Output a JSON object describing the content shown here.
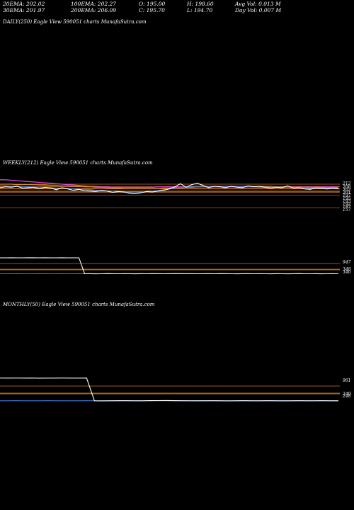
{
  "stats": {
    "ema20": "20EMA: 202.02",
    "ema30": "30EMA: 201.97",
    "ema100": "100EMA: 202.27",
    "ema200": "200EMA: 206.09",
    "open": "O: 195.00",
    "close": "C: 195.70",
    "high": "H: 198.60",
    "low": "L: 194.70",
    "avg_vol": "Avg Vol: 0.013 M",
    "day_vol": "Day Vol: 0.007 M"
  },
  "panels": {
    "daily_label": "DAILY(250) Eagle   View  590051 charts MunafaSutra.com",
    "weekly_label": "WEEKLY(212) Eagle   View  590051 charts MunafaSutra.com",
    "monthly_label": "MONTHLY(50) Eagle   View  590051 charts MunafaSutra.com"
  },
  "colors": {
    "background": "#000000",
    "text": "#ffffff",
    "price": "#ffffff",
    "ema_blue": "#3f7ce0",
    "ema_orange": "#d98a1a",
    "ema_magenta": "#d846d8",
    "level_line": "#c8761c"
  },
  "chart_data": [
    {
      "type": "line",
      "panel": "weekly",
      "y_tick_labels": [
        "212",
        "206",
        "202",
        "201",
        "197",
        "195",
        "193",
        "192",
        "187",
        "157"
      ],
      "level_lines": [
        212,
        206,
        202,
        201,
        197,
        195,
        193,
        187,
        157
      ],
      "series": [
        {
          "role": "price",
          "values": [
            204,
            206,
            205,
            207,
            203,
            204,
            205,
            201,
            205,
            203,
            199,
            204,
            201,
            198,
            200,
            197,
            196,
            195,
            198,
            196,
            193,
            195,
            194,
            191,
            190,
            192,
            195,
            194,
            196,
            198,
            201,
            206,
            213,
            205,
            211,
            214,
            209,
            204,
            207,
            206,
            204,
            207,
            205,
            204,
            208,
            206,
            207,
            205,
            203,
            205,
            204,
            208,
            203,
            204,
            201,
            200,
            203,
            202,
            201,
            203,
            201
          ]
        },
        {
          "role": "ema-short",
          "values": [
            208,
            208,
            207,
            207,
            206,
            206,
            205,
            205,
            204,
            204,
            203,
            203,
            202,
            201,
            200,
            200,
            199,
            198,
            197,
            196,
            196,
            195,
            194,
            194,
            194,
            194,
            195,
            196,
            197,
            199,
            201,
            203,
            205,
            206,
            207,
            207,
            207,
            206,
            206,
            206,
            206,
            206,
            206,
            206,
            206,
            206,
            205,
            205,
            205,
            205,
            205,
            205,
            204,
            204,
            204,
            203,
            203,
            203,
            202,
            202,
            202
          ]
        },
        {
          "role": "ema-mid",
          "values": [
            212,
            212,
            212,
            211,
            211,
            211,
            211,
            210,
            210,
            209,
            209,
            208,
            208,
            207,
            207,
            206,
            206,
            205,
            205,
            204,
            203,
            203,
            202,
            202,
            202,
            202,
            202,
            202,
            202,
            203,
            203,
            204,
            204,
            205,
            205,
            206,
            206,
            206,
            206,
            206,
            206,
            206,
            206,
            206,
            206,
            206,
            206,
            206,
            206,
            206,
            206,
            206,
            205,
            205,
            205,
            205,
            205,
            205,
            204,
            204,
            204
          ]
        },
        {
          "role": "ema-long",
          "values": [
            222,
            222,
            221,
            220,
            219,
            218,
            217,
            216,
            215,
            214,
            213,
            212,
            211,
            210,
            209,
            208,
            207,
            207,
            206,
            206,
            205,
            205,
            205,
            205,
            205,
            205,
            205,
            205,
            206,
            206,
            206,
            206,
            206,
            206,
            206,
            206,
            207,
            207,
            207,
            207,
            207,
            207,
            207,
            207,
            207,
            207,
            207,
            207,
            207,
            206,
            206,
            206,
            206,
            206,
            206,
            206,
            206,
            206,
            206,
            206,
            206
          ]
        }
      ]
    },
    {
      "type": "line",
      "panel": "weekly-indicator",
      "y_tick_labels": [
        "947",
        "348",
        "340"
      ],
      "series": [
        {
          "role": "indicator",
          "values": [
            947,
            947,
            948,
            946,
            947,
            949,
            948,
            947,
            948,
            946,
            947,
            948,
            946,
            947,
            947,
            340,
            342,
            338,
            341,
            345,
            343,
            340,
            344,
            342,
            339,
            343,
            341,
            345,
            342,
            340,
            344,
            347,
            346,
            343,
            342,
            341,
            344,
            343,
            340,
            345,
            342,
            341,
            339,
            342,
            344,
            341,
            343,
            340,
            338,
            342,
            341,
            339,
            343,
            345,
            341,
            340,
            342,
            339,
            341,
            343,
            340
          ]
        },
        {
          "role": "signal",
          "values": [
            340,
            341,
            340,
            342,
            341,
            340,
            341,
            343,
            342,
            340,
            341,
            342,
            340,
            341,
            342,
            343,
            342,
            340,
            341,
            342,
            341,
            340,
            342,
            341,
            343,
            342,
            340,
            341,
            342,
            341,
            343,
            342,
            340,
            341,
            342,
            341,
            340,
            342,
            343,
            341,
            342,
            340,
            341,
            343,
            342,
            341,
            340,
            342,
            341,
            343,
            342,
            340,
            341,
            342,
            341,
            340,
            342,
            341,
            343,
            342,
            340
          ]
        }
      ]
    },
    {
      "type": "line",
      "panel": "monthly",
      "y_tick_labels": [
        "961",
        "249",
        "248"
      ],
      "series": [
        {
          "role": "indicator",
          "values": [
            962,
            961,
            963,
            960,
            962,
            958,
            961,
            960,
            963,
            961,
            960,
            962,
            250,
            247,
            249,
            252,
            251,
            248,
            250,
            253,
            255,
            258,
            254,
            251,
            249,
            250,
            248,
            251,
            249,
            247,
            250,
            252,
            249,
            248,
            251,
            250,
            247,
            249,
            252,
            250,
            248,
            251,
            249,
            250
          ]
        },
        {
          "role": "signal",
          "values": [
            250,
            249,
            251,
            250,
            248,
            249,
            251,
            250,
            249,
            248,
            250,
            251,
            249,
            250,
            248,
            249,
            251,
            250,
            249,
            248,
            250,
            251,
            249,
            250,
            248,
            249,
            251,
            250,
            249,
            248,
            250,
            251,
            249,
            250,
            248,
            249,
            251,
            250,
            249,
            248,
            250,
            251,
            249,
            250
          ]
        }
      ]
    }
  ]
}
